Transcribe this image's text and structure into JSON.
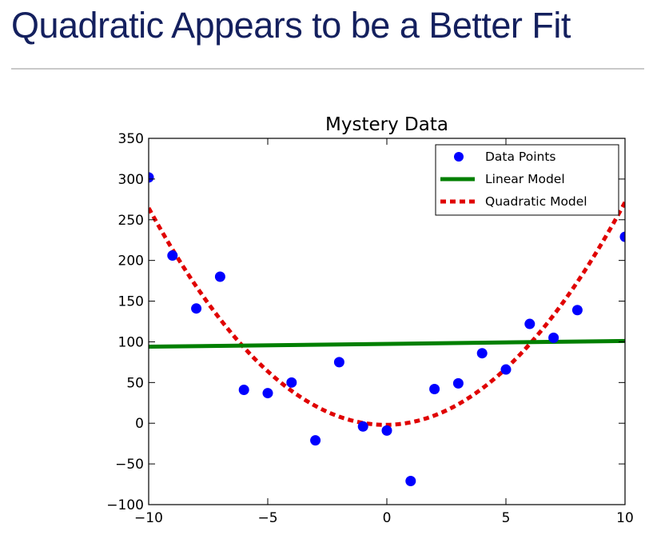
{
  "slide": {
    "title": "Quadratic Appears to be a Better Fit"
  },
  "colors": {
    "title_text": "#14205e",
    "data_points": "#0000ff",
    "linear_model": "#007f00",
    "quadratic_model": "#e00000"
  },
  "chart_data": {
    "type": "scatter",
    "title": "Mystery Data",
    "xlabel": "",
    "ylabel": "",
    "xlim": [
      -10,
      10
    ],
    "ylim": [
      -100,
      350
    ],
    "grid": false,
    "legend_position": "top-right",
    "x_ticks": [
      -10,
      -5,
      0,
      5,
      10
    ],
    "x_tick_labels": [
      "−10",
      "−5",
      "0",
      "5",
      "10"
    ],
    "y_ticks": [
      -100,
      -50,
      0,
      50,
      100,
      150,
      200,
      250,
      300,
      350
    ],
    "y_tick_labels": [
      "−100",
      "−50",
      "0",
      "50",
      "100",
      "150",
      "200",
      "250",
      "300",
      "350"
    ],
    "series": [
      {
        "name": "Data Points",
        "kind": "markers",
        "color": "#0000ff",
        "x": [
          -10,
          -9,
          -8,
          -7,
          -6,
          -5,
          -4,
          -3,
          -2,
          -1,
          0,
          1,
          2,
          3,
          4,
          5,
          6,
          7,
          8,
          10
        ],
        "y": [
          302,
          206,
          141,
          180,
          41,
          37,
          50,
          -21,
          75,
          -4,
          -9,
          -71,
          42,
          49,
          86,
          66,
          122,
          105,
          139,
          229
        ]
      },
      {
        "name": "Linear Model",
        "kind": "line",
        "style": "solid",
        "color": "#007f00",
        "x": [
          -10,
          10
        ],
        "y": [
          94,
          101
        ]
      },
      {
        "name": "Quadratic Model",
        "kind": "curve",
        "style": "dashed",
        "color": "#e00000",
        "coefficients": {
          "a": 2.7,
          "b": 0.35,
          "c": -2
        }
      }
    ]
  }
}
